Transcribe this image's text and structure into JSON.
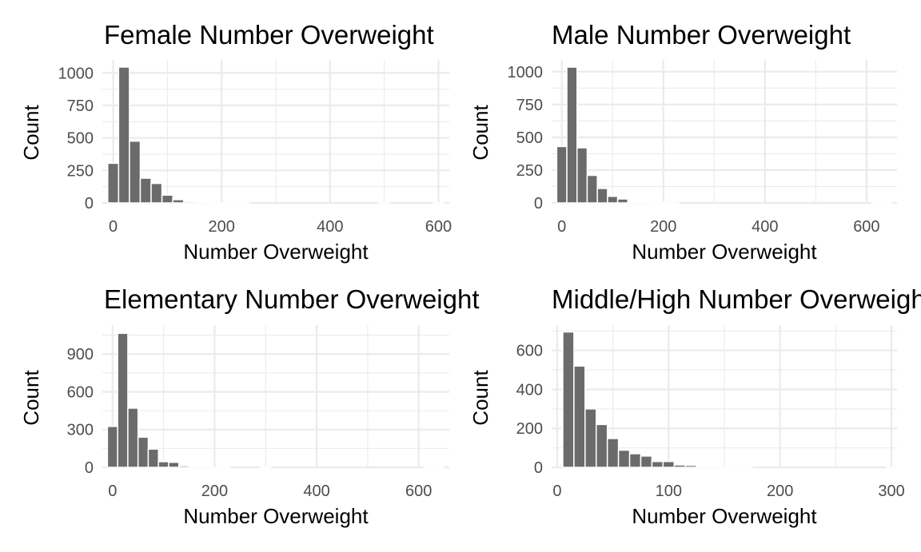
{
  "chart_data": [
    {
      "type": "bar",
      "title": "Female Number Overweight",
      "xlabel": "Number Overweight",
      "ylabel": "Count",
      "xlim": [
        -20,
        620
      ],
      "ylim": [
        0,
        1100
      ],
      "x_ticks": [
        0,
        200,
        400,
        600
      ],
      "x_tick_labels": [
        "0",
        "200",
        "400",
        "600"
      ],
      "y_ticks": [
        0,
        250,
        500,
        750,
        1000
      ],
      "y_tick_labels": [
        "0",
        "250",
        "500",
        "750",
        "1000"
      ],
      "bin_width": 20,
      "bins": [
        0,
        20,
        40,
        60,
        80,
        100,
        120,
        140,
        160,
        180,
        200,
        220,
        240,
        260,
        280,
        300,
        320,
        340,
        360,
        380,
        400,
        420,
        440,
        460,
        480,
        500,
        520,
        540,
        560,
        580,
        600
      ],
      "values": [
        305,
        1045,
        475,
        190,
        150,
        60,
        25,
        10,
        5,
        2,
        1,
        1,
        1,
        0,
        0,
        0,
        0,
        0,
        0,
        0,
        0,
        0,
        0,
        0,
        0,
        1,
        0,
        0,
        0,
        0,
        1
      ],
      "grid": true,
      "bar_color": "#6b6b6b"
    },
    {
      "type": "bar",
      "title": "Male Number Overweight",
      "xlabel": "Number Overweight",
      "ylabel": "Count",
      "xlim": [
        -20,
        660
      ],
      "ylim": [
        0,
        1090
      ],
      "x_ticks": [
        0,
        200,
        400,
        600
      ],
      "x_tick_labels": [
        "0",
        "200",
        "400",
        "600"
      ],
      "y_ticks": [
        0,
        250,
        500,
        750,
        1000
      ],
      "y_tick_labels": [
        "0",
        "250",
        "500",
        "750",
        "1000"
      ],
      "bin_width": 20,
      "bins": [
        0,
        20,
        40,
        60,
        80,
        100,
        120,
        140,
        160,
        180,
        200,
        220,
        240,
        260,
        280,
        300,
        320,
        340,
        360,
        380,
        400,
        420,
        440,
        460,
        480,
        500,
        520,
        540,
        560,
        580,
        600,
        620,
        640
      ],
      "values": [
        430,
        1035,
        420,
        210,
        110,
        50,
        30,
        5,
        3,
        2,
        1,
        1,
        0,
        0,
        0,
        0,
        0,
        0,
        0,
        0,
        0,
        0,
        0,
        0,
        0,
        0,
        0,
        0,
        0,
        0,
        0,
        1,
        1
      ],
      "grid": true,
      "bar_color": "#6b6b6b"
    },
    {
      "type": "bar",
      "title": "Elementary Number Overweight",
      "xlabel": "Number Overweight",
      "ylabel": "Count",
      "xlim": [
        -20,
        660
      ],
      "ylim": [
        0,
        1130
      ],
      "x_ticks": [
        0,
        200,
        400,
        600
      ],
      "x_tick_labels": [
        "0",
        "200",
        "400",
        "600"
      ],
      "y_ticks": [
        0,
        300,
        600,
        900
      ],
      "y_tick_labels": [
        "0",
        "300",
        "600",
        "900"
      ],
      "bin_width": 20,
      "bins": [
        0,
        20,
        40,
        60,
        80,
        100,
        120,
        140,
        160,
        180,
        200,
        220,
        240,
        260,
        280,
        300,
        320,
        340,
        360,
        380,
        400,
        420,
        440,
        460,
        480,
        500,
        520,
        540,
        560,
        580,
        600,
        620,
        640
      ],
      "values": [
        325,
        1065,
        470,
        240,
        145,
        45,
        40,
        12,
        3,
        2,
        1,
        1,
        0,
        0,
        0,
        1,
        0,
        0,
        0,
        0,
        0,
        0,
        0,
        0,
        0,
        0,
        0,
        0,
        0,
        0,
        0,
        1,
        1
      ],
      "grid": true,
      "bar_color": "#6b6b6b"
    },
    {
      "type": "bar",
      "title": "Middle/High Number Overweight",
      "xlabel": "Number Overweight",
      "ylabel": "Count",
      "xlim": [
        -5,
        305
      ],
      "ylim": [
        0,
        730
      ],
      "x_ticks": [
        0,
        100,
        200,
        300
      ],
      "x_tick_labels": [
        "0",
        "100",
        "200",
        "300"
      ],
      "y_ticks": [
        0,
        200,
        400,
        600
      ],
      "y_tick_labels": [
        "0",
        "200",
        "400",
        "600"
      ],
      "bin_width": 10,
      "bins": [
        10,
        20,
        30,
        40,
        50,
        60,
        70,
        80,
        90,
        100,
        110,
        120,
        130,
        140,
        150,
        160,
        170,
        180,
        190,
        200,
        210,
        220,
        230,
        240,
        250,
        260,
        270,
        280,
        290,
        300
      ],
      "values": [
        695,
        520,
        300,
        220,
        148,
        88,
        70,
        58,
        30,
        30,
        12,
        10,
        3,
        2,
        1,
        1,
        1,
        0,
        0,
        0,
        0,
        0,
        0,
        0,
        0,
        0,
        0,
        0,
        0,
        1
      ],
      "grid": true,
      "bar_color": "#6b6b6b"
    }
  ]
}
